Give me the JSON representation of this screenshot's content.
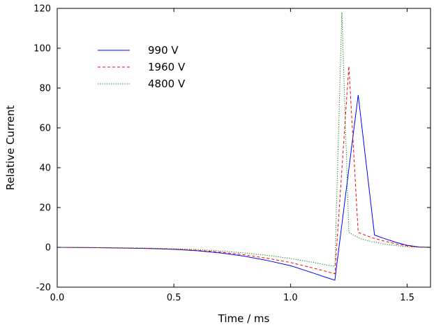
{
  "chart_data": {
    "type": "line",
    "title": "",
    "xlabel": "Time / ms",
    "ylabel": "Relative Current",
    "xlim": [
      0,
      1.6
    ],
    "ylim": [
      -20,
      120
    ],
    "xticks": [
      0.0,
      0.5,
      1.0,
      1.5
    ],
    "yticks": [
      -20,
      0,
      20,
      40,
      60,
      80,
      100,
      120
    ],
    "xtick_labels": [
      "0.0",
      "0.5",
      "1.0",
      "1.5"
    ],
    "ytick_labels": [
      "-20",
      "0",
      "20",
      "40",
      "60",
      "80",
      "100",
      "120"
    ],
    "grid": false,
    "legend_position": "top-left",
    "series": [
      {
        "name": "990 V",
        "color": "#0000ff",
        "dash": "solid",
        "x": [
          0.0,
          0.2,
          0.4,
          0.5,
          0.6,
          0.7,
          0.8,
          0.9,
          1.0,
          1.1,
          1.15,
          1.19,
          1.29,
          1.36,
          1.4,
          1.45,
          1.5,
          1.55,
          1.6
        ],
        "y": [
          0,
          -0.2,
          -0.6,
          -1.0,
          -1.7,
          -2.8,
          -4.4,
          -6.6,
          -9.2,
          -13.0,
          -15.0,
          -16.5,
          76.5,
          6.2,
          4.5,
          2.6,
          1.0,
          0.2,
          0
        ]
      },
      {
        "name": "1960 V",
        "color": "#ff0000",
        "dash": "dashed",
        "x": [
          0.0,
          0.2,
          0.4,
          0.5,
          0.6,
          0.7,
          0.8,
          0.9,
          1.0,
          1.1,
          1.15,
          1.19,
          1.25,
          1.29,
          1.35,
          1.4,
          1.45,
          1.5,
          1.55,
          1.6
        ],
        "y": [
          0,
          -0.2,
          -0.5,
          -0.9,
          -1.5,
          -2.4,
          -3.7,
          -5.5,
          -7.6,
          -10.5,
          -12.0,
          -13.3,
          91.0,
          7.5,
          4.8,
          3.2,
          1.8,
          0.7,
          0.1,
          0
        ]
      },
      {
        "name": "4800 V",
        "color": "#008000",
        "dash": "dotted",
        "x": [
          0.0,
          0.2,
          0.4,
          0.5,
          0.6,
          0.7,
          0.8,
          0.9,
          1.0,
          1.1,
          1.15,
          1.19,
          1.22,
          1.25,
          1.3,
          1.35,
          1.4,
          1.45,
          1.5,
          1.55,
          1.6
        ],
        "y": [
          0,
          -0.1,
          -0.4,
          -0.7,
          -1.1,
          -1.8,
          -2.8,
          -4.0,
          -5.6,
          -7.6,
          -8.8,
          -9.5,
          118.0,
          7.5,
          4.3,
          2.8,
          1.7,
          0.9,
          0.3,
          0.1,
          0
        ]
      }
    ]
  }
}
